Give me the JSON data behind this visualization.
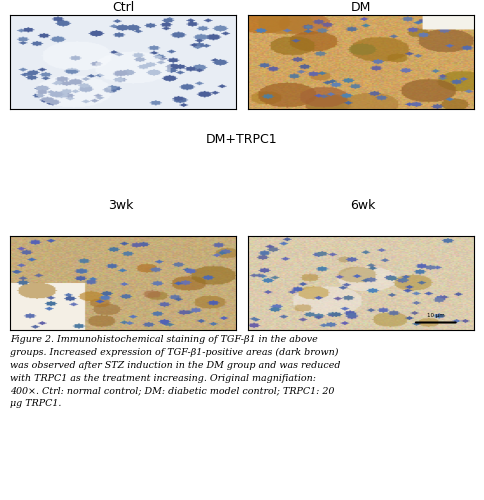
{
  "title_top_left": "Ctrl",
  "title_top_right": "DM",
  "title_middle": "DM+TRPC1",
  "title_bottom_left": "3wk",
  "title_bottom_right": "6wk",
  "caption": "Figure 2. Immunohistochemical staining of TGF-β1 in the above\ngroups. Increased expression of TGF-β1-positive areas (dark brown)\nwas observed after STZ induction in the DM group and was reduced\nwith TRPC1 as the treatment increasing. Original magnifiation:\n400×. Ctrl: normal control; DM: diabetic model control; TRPC1: 20\nμg TRPC1.",
  "bg_color": "#ffffff",
  "label_color": "#000000",
  "figure_width": 4.84,
  "figure_height": 5.0
}
